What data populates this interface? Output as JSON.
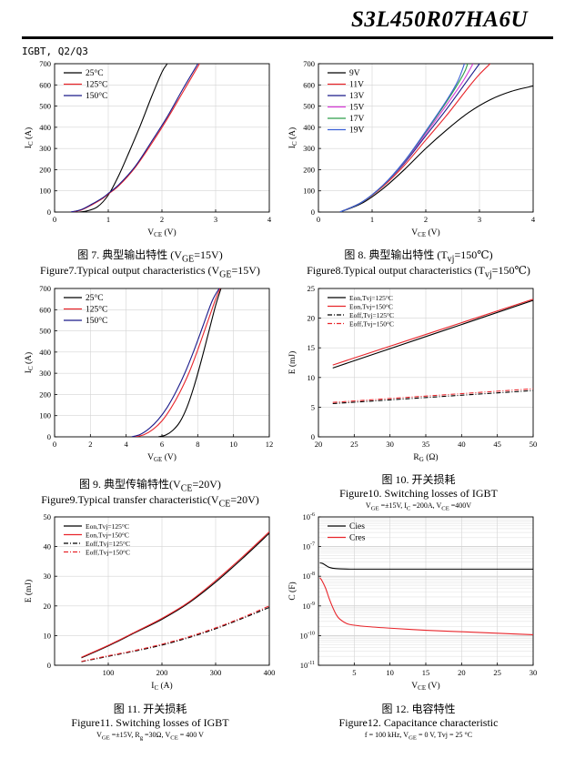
{
  "header": {
    "title": "S3L450R07HA6U",
    "section": "IGBT, Q2/Q3"
  },
  "captions": [
    {
      "cn": "图 7.  典型输出特性  (V<sub>GE</sub>=15V)",
      "en": "Figure7.Typical output characteristics (V<sub>GE</sub>=15V)",
      "cond": ""
    },
    {
      "cn": "图 8.  典型输出特性  (T<sub>vj</sub>=150℃)",
      "en": "Figure8.Typical output characteristics (T<sub>vj</sub>=150℃)",
      "cond": ""
    },
    {
      "cn": "图 9.  典型传输特性(V<sub>CE</sub>=20V)",
      "en": "Figure9.Typical transfer characteristic(V<sub>CE</sub>=20V)",
      "cond": ""
    },
    {
      "cn": "图 10.  开关损耗",
      "en": "Figure10. Switching losses of IGBT",
      "cond": "V<sub>GE</sub> =±15V, I<sub>C</sub> =200A, V<sub>CE</sub> =400V"
    },
    {
      "cn": "图 11.  开关损耗",
      "en": "Figure11. Switching losses of IGBT",
      "cond": "V<sub>GE</sub> =±15V, R<sub>g</sub> =30Ω, V<sub>CE</sub> = 400 V"
    },
    {
      "cn": "图 12.  电容特性",
      "en": "Figure12. Capacitance characteristic",
      "cond": "f = 100 kHz, V<sub>GE</sub> = 0 V, Tvj = 25 °C"
    }
  ],
  "chart_data": [
    {
      "type": "line",
      "xlabel": "V<tspan font-size='7' dy='2'>CE</tspan><tspan dy='-2'> (V)</tspan>",
      "ylabel": "I<tspan font-size='7' dy='2'>C</tspan><tspan dy='-2'> (A)</tspan>",
      "xlim": [
        0,
        4
      ],
      "ylim": [
        0,
        700
      ],
      "xticks": [
        0,
        1,
        2,
        3,
        4
      ],
      "yticks": [
        0,
        100,
        200,
        300,
        400,
        500,
        600,
        700
      ],
      "legend": "top-left",
      "series": [
        {
          "name": "25°C",
          "color": "#000000",
          "dash": "",
          "x": [
            0.45,
            0.6,
            0.8,
            1.0,
            1.2,
            1.4,
            1.6,
            1.8,
            2.0,
            2.1
          ],
          "y": [
            0,
            5,
            25,
            80,
            175,
            290,
            410,
            540,
            660,
            700
          ]
        },
        {
          "name": "125°C",
          "color": "#e8252b",
          "dash": "",
          "x": [
            0.3,
            0.5,
            0.7,
            0.9,
            1.0,
            1.2,
            1.5,
            1.8,
            2.1,
            2.4,
            2.7
          ],
          "y": [
            0,
            10,
            35,
            65,
            85,
            125,
            210,
            320,
            440,
            570,
            700
          ]
        },
        {
          "name": "150°C",
          "color": "#1a1a8a",
          "dash": "",
          "x": [
            0.3,
            0.5,
            0.7,
            0.9,
            1.0,
            1.2,
            1.5,
            1.8,
            2.1,
            2.4,
            2.67
          ],
          "y": [
            0,
            12,
            38,
            68,
            88,
            130,
            215,
            330,
            450,
            585,
            700
          ]
        }
      ]
    },
    {
      "type": "line",
      "xlabel": "V<tspan font-size='7' dy='2'>CE</tspan><tspan dy='-2'> (V)</tspan>",
      "ylabel": "I<tspan font-size='7' dy='2'>C</tspan><tspan dy='-2'> (A)</tspan>",
      "xlim": [
        0,
        4
      ],
      "ylim": [
        0,
        700
      ],
      "xticks": [
        0,
        1,
        2,
        3,
        4
      ],
      "yticks": [
        0,
        100,
        200,
        300,
        400,
        500,
        600,
        700
      ],
      "legend": "top-left",
      "series": [
        {
          "name": "9V",
          "color": "#000000",
          "dash": "",
          "x": [
            0.4,
            0.8,
            1.2,
            1.6,
            2.0,
            2.4,
            2.8,
            3.2,
            3.6,
            4.0
          ],
          "y": [
            0,
            40,
            110,
            200,
            300,
            390,
            470,
            530,
            570,
            595
          ]
        },
        {
          "name": "11V",
          "color": "#e8252b",
          "dash": "",
          "x": [
            0.4,
            0.8,
            1.2,
            1.6,
            2.0,
            2.4,
            2.8,
            3.0,
            3.2
          ],
          "y": [
            0,
            45,
            120,
            220,
            340,
            460,
            590,
            650,
            700
          ]
        },
        {
          "name": "13V",
          "color": "#1a1a8a",
          "dash": "",
          "x": [
            0.4,
            0.8,
            1.2,
            1.6,
            2.0,
            2.4,
            2.8,
            3.0
          ],
          "y": [
            0,
            45,
            125,
            230,
            360,
            490,
            630,
            700
          ]
        },
        {
          "name": "15V",
          "color": "#d63ad6",
          "dash": "",
          "x": [
            0.4,
            0.8,
            1.2,
            1.6,
            2.0,
            2.4,
            2.7,
            2.88
          ],
          "y": [
            0,
            45,
            125,
            235,
            370,
            510,
            620,
            700
          ]
        },
        {
          "name": "17V",
          "color": "#2d9e4a",
          "dash": "",
          "x": [
            0.4,
            0.8,
            1.2,
            1.6,
            2.0,
            2.4,
            2.7,
            2.78
          ],
          "y": [
            0,
            45,
            125,
            238,
            378,
            525,
            650,
            700
          ]
        },
        {
          "name": "19V",
          "color": "#3a5fd6",
          "dash": "",
          "x": [
            0.4,
            0.8,
            1.2,
            1.6,
            2.0,
            2.4,
            2.6,
            2.72
          ],
          "y": [
            0,
            45,
            126,
            240,
            382,
            532,
            620,
            700
          ]
        }
      ]
    },
    {
      "type": "line",
      "xlabel": "V<tspan font-size='7' dy='2'>GE</tspan><tspan dy='-2'> (V)</tspan>",
      "ylabel": "I<tspan font-size='7' dy='2'>C</tspan><tspan dy='-2'> (A)</tspan>",
      "xlim": [
        0,
        12
      ],
      "ylim": [
        0,
        700
      ],
      "xticks": [
        0,
        2,
        4,
        6,
        8,
        10,
        12
      ],
      "yticks": [
        0,
        100,
        200,
        300,
        400,
        500,
        600,
        700
      ],
      "legend": "top-left",
      "series": [
        {
          "name": "25°C",
          "color": "#000000",
          "dash": "",
          "x": [
            5.8,
            6.2,
            6.6,
            7.0,
            7.4,
            7.8,
            8.2,
            8.6,
            9.0,
            9.3
          ],
          "y": [
            0,
            8,
            30,
            70,
            140,
            240,
            360,
            490,
            620,
            700
          ]
        },
        {
          "name": "125°C",
          "color": "#e8252b",
          "dash": "",
          "x": [
            4.5,
            5.0,
            5.5,
            6.0,
            6.5,
            7.0,
            7.5,
            8.0,
            8.5,
            9.0,
            9.25
          ],
          "y": [
            0,
            10,
            35,
            75,
            135,
            210,
            300,
            410,
            530,
            650,
            700
          ]
        },
        {
          "name": "150°C",
          "color": "#1a1a8a",
          "dash": "",
          "x": [
            4.3,
            4.8,
            5.3,
            5.8,
            6.3,
            6.8,
            7.3,
            7.8,
            8.3,
            8.8,
            9.2
          ],
          "y": [
            0,
            12,
            40,
            82,
            140,
            215,
            305,
            410,
            525,
            640,
            700
          ]
        }
      ]
    },
    {
      "type": "line",
      "xlabel": "R<tspan font-size='7' dy='2'>G</tspan><tspan dy='-2'> (Ω)</tspan>",
      "ylabel": "E (mJ)",
      "xlim": [
        20,
        50
      ],
      "ylim": [
        0,
        25
      ],
      "xticks": [
        20,
        25,
        30,
        35,
        40,
        45,
        50
      ],
      "yticks": [
        0,
        5,
        10,
        15,
        20,
        25
      ],
      "legend": "top-left",
      "series": [
        {
          "name": "Eon,Tvj=125°C",
          "color": "#000000",
          "dash": "",
          "x": [
            22,
            50
          ],
          "y": [
            11.6,
            23.0
          ]
        },
        {
          "name": "Eon,Tvj=150°C",
          "color": "#e8252b",
          "dash": "",
          "x": [
            22,
            50
          ],
          "y": [
            12.1,
            23.2
          ]
        },
        {
          "name": "Eoff,Tvj=125°C",
          "color": "#000000",
          "dash": "5,2,1,2",
          "x": [
            22,
            50
          ],
          "y": [
            5.6,
            7.8
          ]
        },
        {
          "name": "Eoff,Tvj=150°C",
          "color": "#e8252b",
          "dash": "5,2,1,2",
          "x": [
            22,
            50
          ],
          "y": [
            5.8,
            8.1
          ]
        }
      ]
    },
    {
      "type": "line",
      "xlabel": "I<tspan font-size='7' dy='2'>C</tspan><tspan dy='-2'> (A)</tspan>",
      "ylabel": "E (mJ)",
      "xlim": [
        0,
        400
      ],
      "ylim": [
        0,
        50
      ],
      "xticks": [
        100,
        200,
        300,
        400
      ],
      "yticks": [
        0,
        10,
        20,
        30,
        40,
        50
      ],
      "legend": "top-left",
      "series": [
        {
          "name": "Eon,Tvj=125°C",
          "color": "#000000",
          "dash": "",
          "x": [
            50,
            100,
            150,
            200,
            250,
            300,
            350,
            400
          ],
          "y": [
            2.5,
            6.5,
            11,
            15.5,
            21,
            28,
            36,
            44.5
          ]
        },
        {
          "name": "Eon,Tvj=150°C",
          "color": "#e8252b",
          "dash": "",
          "x": [
            50,
            100,
            150,
            200,
            250,
            300,
            350,
            400
          ],
          "y": [
            2.7,
            6.7,
            11.2,
            15.8,
            21.3,
            28.5,
            36.5,
            45
          ]
        },
        {
          "name": "Eoff,Tvj=125°C",
          "color": "#000000",
          "dash": "5,2,1,2",
          "x": [
            50,
            100,
            150,
            200,
            250,
            300,
            350,
            400
          ],
          "y": [
            1.2,
            3,
            4.8,
            6.8,
            9.3,
            12.3,
            15.8,
            19.5
          ]
        },
        {
          "name": "Eoff,Tvj=150°C",
          "color": "#e8252b",
          "dash": "5,2,1,2",
          "x": [
            50,
            100,
            150,
            200,
            250,
            300,
            350,
            400
          ],
          "y": [
            1.3,
            3.2,
            5.0,
            7.1,
            9.6,
            12.6,
            16.1,
            20
          ]
        }
      ]
    },
    {
      "type": "line",
      "xlabel": "V<tspan font-size='7' dy='2'>CE</tspan><tspan dy='-2'> (V)</tspan>",
      "ylabel": "C (F)",
      "xlim": [
        0,
        30
      ],
      "ylim": [
        -11,
        -6
      ],
      "log_y": true,
      "xticks": [
        5,
        10,
        15,
        20,
        25,
        30
      ],
      "yticks": [
        -11,
        -10,
        -9,
        -8,
        -7,
        -6
      ],
      "legend": "top-left",
      "series": [
        {
          "name": "Cies",
          "color": "#000000",
          "dash": "",
          "x": [
            0.2,
            0.6,
            1,
            1.5,
            2,
            3,
            5,
            10,
            20,
            30
          ],
          "y": [
            -7.55,
            -7.57,
            -7.63,
            -7.7,
            -7.73,
            -7.75,
            -7.76,
            -7.76,
            -7.76,
            -7.76
          ]
        },
        {
          "name": "Cres",
          "color": "#e8252b",
          "dash": "",
          "x": [
            0.2,
            0.5,
            1,
            1.5,
            2,
            2.5,
            3,
            4,
            5,
            7,
            10,
            15,
            20,
            25,
            30
          ],
          "y": [
            -8.05,
            -8.15,
            -8.4,
            -8.75,
            -9.05,
            -9.3,
            -9.45,
            -9.6,
            -9.65,
            -9.7,
            -9.75,
            -9.82,
            -9.87,
            -9.92,
            -9.97
          ]
        }
      ]
    }
  ]
}
